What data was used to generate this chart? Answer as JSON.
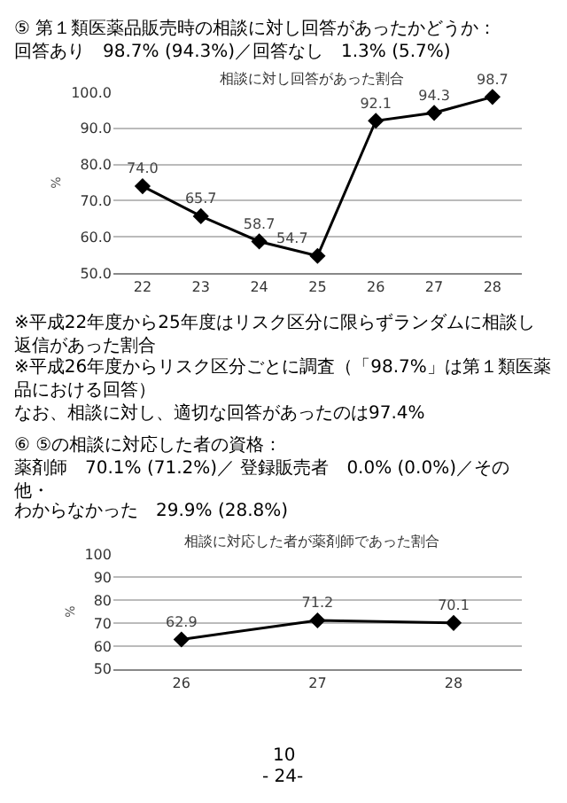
{
  "chart_data": [
    {
      "type": "line",
      "title": "相談に対し回答があった割合",
      "ylabel": "%",
      "categories": [
        "22",
        "23",
        "24",
        "25",
        "26",
        "27",
        "28"
      ],
      "series": [
        {
          "color": "#000000",
          "values": [
            74.0,
            65.7,
            58.7,
            54.7,
            92.1,
            94.3,
            98.7
          ],
          "value_labels": [
            "74.0",
            "65.7",
            "58.7",
            "54.7",
            "92.1",
            "94.3",
            "98.7"
          ]
        }
      ],
      "ylim": [
        50,
        100
      ],
      "yticks": [
        {
          "value": 50,
          "label": "50.0"
        },
        {
          "value": 60,
          "label": "60.0"
        },
        {
          "value": 70,
          "label": "70.0"
        },
        {
          "value": 80,
          "label": "80.0"
        },
        {
          "value": 90,
          "label": "90.0"
        },
        {
          "value": 100,
          "label": "100.0"
        }
      ],
      "grid": "y",
      "marker": "diamond",
      "line_style": "solid",
      "data_labels": true,
      "annotations": [
        "⑤ 第１類医薬品販売時の相談に対し回答があったかどうか：",
        "回答あり　98.7% (94.3%)／回答なし　1.3% (5.7%)",
        "※平成22年度から25年度はリスク区分に限らずランダムに相談し返信があった割合",
        "※平成26年度からリスク区分ごとに調査（「98.7%」は第１類医薬品における回答）",
        "なお、相談に対し、適切な回答があったのは97.4%"
      ]
    },
    {
      "type": "line",
      "title": "相談に対応した者が薬剤師であった割合",
      "ylabel": "%",
      "categories": [
        "26",
        "27",
        "28"
      ],
      "series": [
        {
          "color": "#000000",
          "values": [
            62.9,
            71.2,
            70.1
          ]
        }
      ],
      "ylim": [
        50,
        100
      ],
      "yticks": [
        50,
        60,
        70,
        80,
        90,
        100
      ],
      "grid": "y",
      "marker": "diamond",
      "line_style": "solid",
      "data_labels": true,
      "annotations": [
        "⑥ ⑤の相談に対応した者の資格：",
        "薬剤師　70.1% (71.2%)／ 登録販売者　0.0% (0.0%)／その他・",
        "わからなかった　29.9% (28.8%)",
        "10",
        "- 24-"
      ]
    }
  ]
}
